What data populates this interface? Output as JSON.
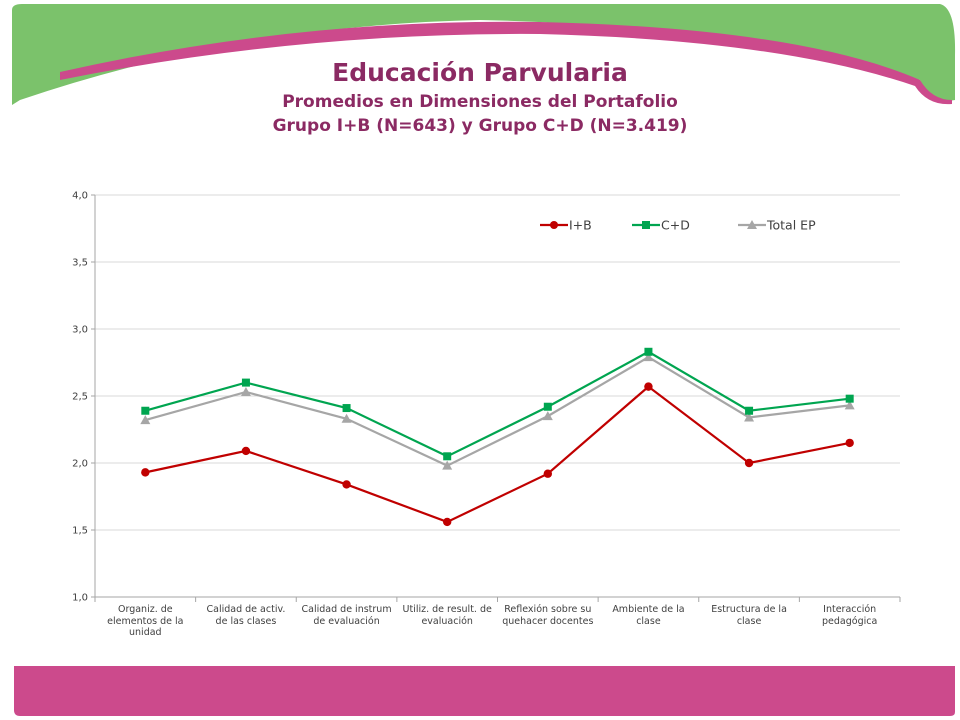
{
  "header": {
    "title": "Educación Parvularia",
    "subtitle1": "Promedios en Dimensiones del Portafolio",
    "subtitle2": "Grupo I+B (N=643) y Grupo C+D (N=3.419)"
  },
  "colors": {
    "green_band": "#7bc26b",
    "pink_band": "#cc4a8c",
    "title": "#8b2a63"
  },
  "chart_data": {
    "type": "line",
    "categories": [
      "Organiz. de elementos de la unidad",
      "Calidad de activ. de las clases",
      "Calidad de instrum de evaluación",
      "Utiliz. de result. de evaluación",
      "Reflexión sobre su quehacer docentes",
      "Ambiente de la clase",
      "Estructura de la clase",
      "Interacción pedagógica"
    ],
    "series": [
      {
        "name": "I+B",
        "color": "#c00000",
        "marker": "circle",
        "values": [
          1.93,
          2.09,
          1.84,
          1.56,
          1.92,
          2.57,
          2.0,
          2.15
        ]
      },
      {
        "name": "C+D",
        "color": "#00a550",
        "marker": "square",
        "values": [
          2.39,
          2.6,
          2.41,
          2.05,
          2.42,
          2.83,
          2.39,
          2.48
        ]
      },
      {
        "name": "Total EP",
        "color": "#a6a6a6",
        "marker": "triangle",
        "values": [
          2.32,
          2.53,
          2.33,
          1.98,
          2.35,
          2.79,
          2.34,
          2.43
        ]
      }
    ],
    "ylim": [
      1.0,
      4.0
    ],
    "yticks": [
      "1,0",
      "1,5",
      "2,0",
      "2,5",
      "3,0",
      "3,5",
      "4,0"
    ],
    "grid": true,
    "legend_position": "top-right"
  }
}
